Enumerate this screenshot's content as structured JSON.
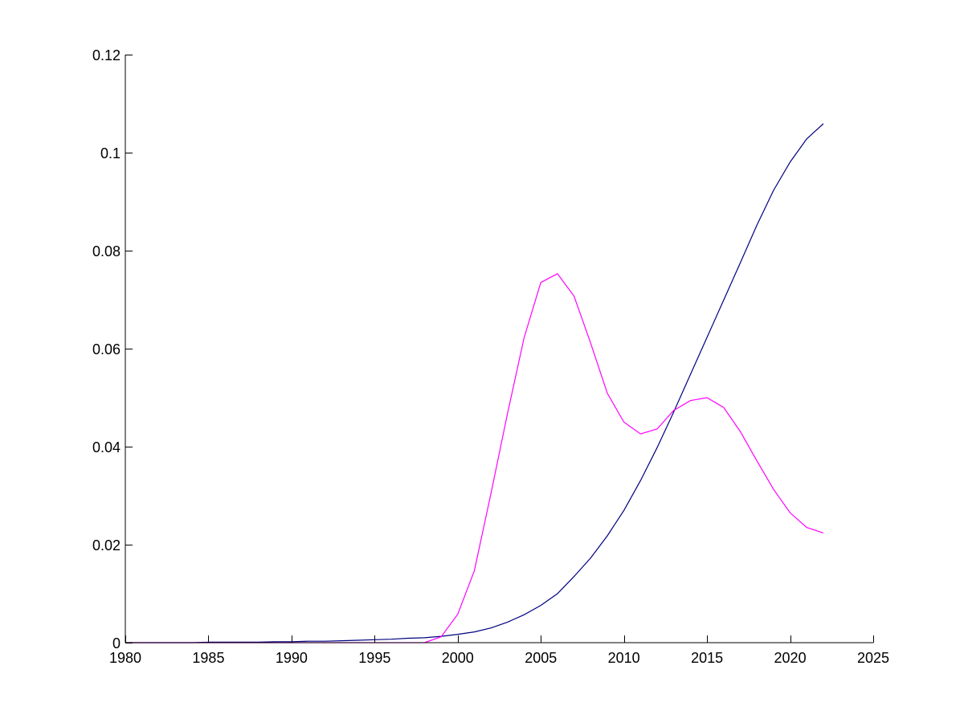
{
  "chart_data": {
    "type": "line",
    "title": "",
    "xlabel": "",
    "ylabel": "",
    "xlim": [
      1980,
      2025
    ],
    "ylim": [
      0,
      0.12
    ],
    "grid": false,
    "x_ticks": [
      "1980",
      "1985",
      "1990",
      "1995",
      "2000",
      "2005",
      "2010",
      "2015",
      "2020",
      "2025"
    ],
    "y_ticks": [
      "0",
      "0.02",
      "0.04",
      "0.06",
      "0.08",
      "0.1",
      "0.12"
    ],
    "x_tick_values": [
      1980,
      1985,
      1990,
      1995,
      2000,
      2005,
      2010,
      2015,
      2020,
      2025
    ],
    "y_tick_values": [
      0,
      0.02,
      0.04,
      0.06,
      0.08,
      0.1,
      0.12
    ],
    "x": [
      1980,
      1981,
      1982,
      1983,
      1984,
      1985,
      1986,
      1987,
      1988,
      1989,
      1990,
      1991,
      1992,
      1993,
      1994,
      1995,
      1996,
      1997,
      1998,
      1999,
      2000,
      2001,
      2002,
      2003,
      2004,
      2005,
      2006,
      2007,
      2008,
      2009,
      2010,
      2011,
      2012,
      2013,
      2014,
      2015,
      2016,
      2017,
      2018,
      2019,
      2020,
      2021,
      2022
    ],
    "series": [
      {
        "color": "#000080",
        "values": [
          0.0,
          0.0,
          0.0,
          0.0,
          0.0,
          0.0001,
          0.0001,
          0.0001,
          0.0001,
          0.0002,
          0.0002,
          0.0003,
          0.0003,
          0.0004,
          0.0005,
          0.0006,
          0.0007,
          0.0009,
          0.001,
          0.0013,
          0.0017,
          0.0022,
          0.003,
          0.0042,
          0.0057,
          0.0076,
          0.01,
          0.0135,
          0.0173,
          0.0218,
          0.027,
          0.0331,
          0.0398,
          0.0471,
          0.0547,
          0.0623,
          0.0699,
          0.0775,
          0.0852,
          0.0923,
          0.0981,
          0.1028,
          0.1059
        ]
      },
      {
        "color": "#ff00ff",
        "values": [
          0.0,
          0.0,
          0.0,
          0.0,
          0.0,
          0.0,
          0.0,
          0.0,
          0.0,
          0.0,
          0.0,
          0.0,
          0.0,
          0.0,
          0.0,
          0.0,
          0.0,
          0.0,
          0.0,
          0.0012,
          0.0058,
          0.0147,
          0.0305,
          0.0468,
          0.0623,
          0.0735,
          0.0753,
          0.0707,
          0.0611,
          0.0509,
          0.045,
          0.0426,
          0.0436,
          0.0474,
          0.0494,
          0.05,
          0.048,
          0.0431,
          0.0371,
          0.0313,
          0.0265,
          0.0235,
          0.0224
        ]
      }
    ]
  }
}
